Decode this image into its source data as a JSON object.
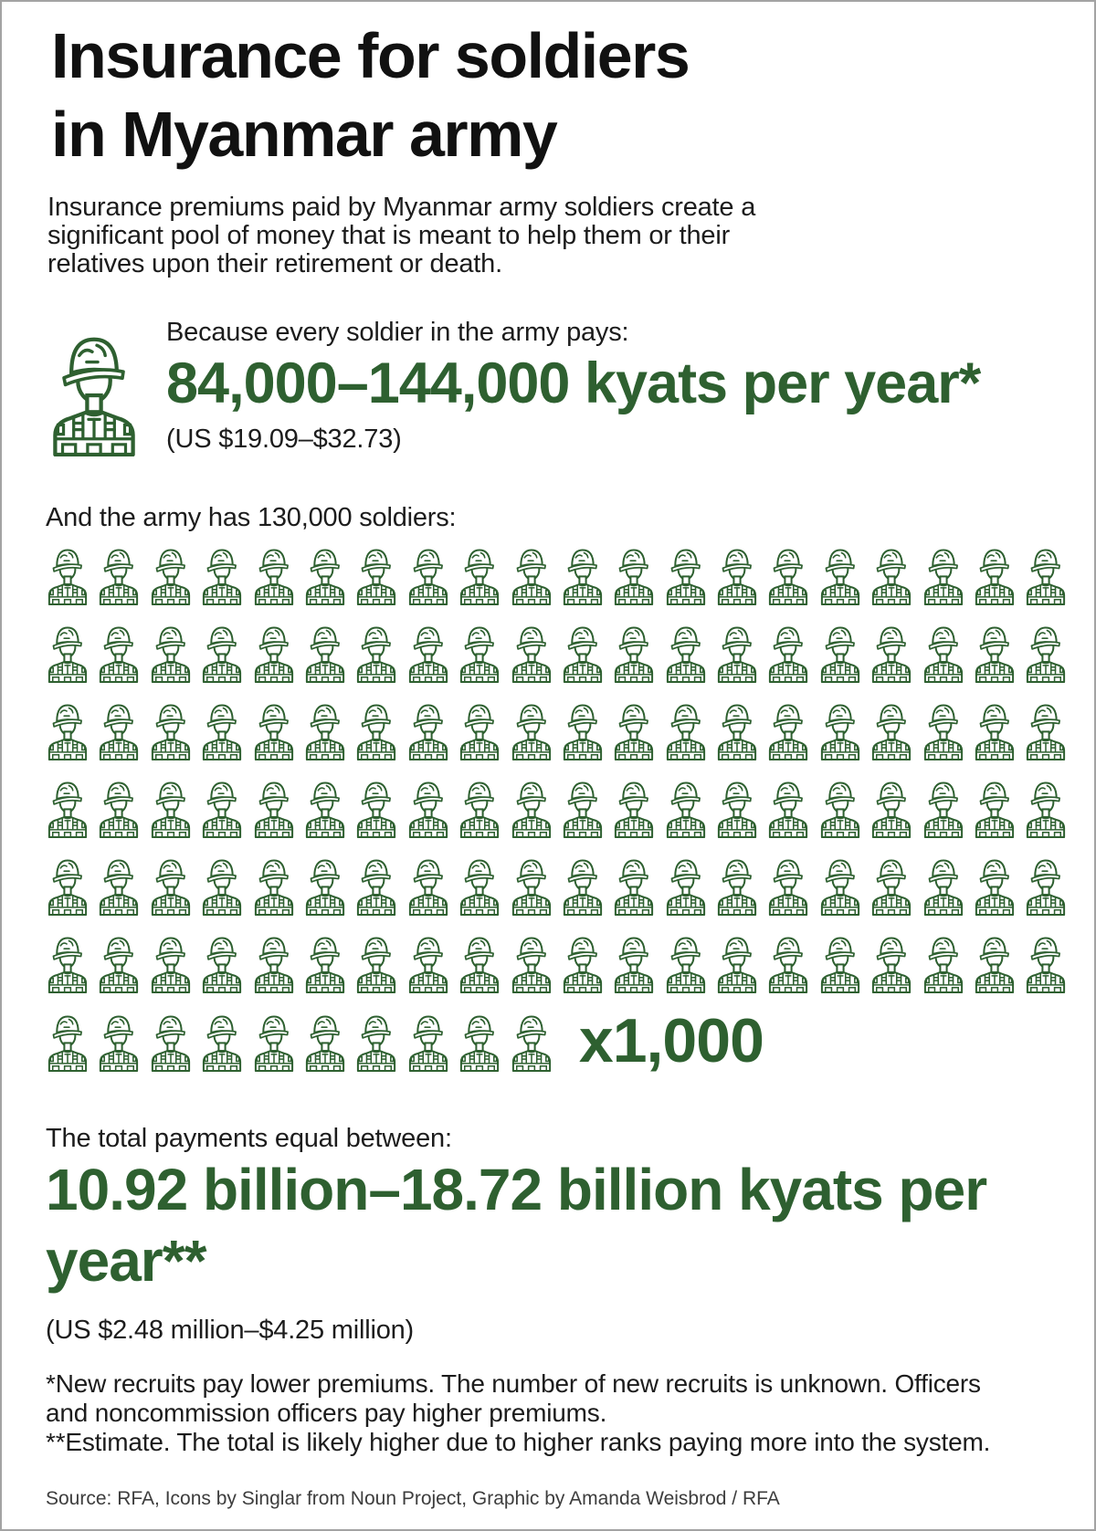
{
  "title": {
    "line1": "Insurance for soldiers",
    "line2": "in Myanmar army"
  },
  "intro": {
    "lines": [
      "Insurance premiums paid by Myanmar army soldiers create a",
      "significant pool of money that is meant to help them or their",
      "relatives upon their retirement or death."
    ]
  },
  "premium_fact": {
    "lead_in": "Because every soldier in the army pays:",
    "amount": "84,000–144,000 kyats per year*",
    "usd": "(US $19.09–$32.73)",
    "icon": "soldier-icon"
  },
  "army_size": {
    "label": "And the army has 130,000 soldiers:",
    "icon": "soldier-icon",
    "icons_per_row": [
      20,
      20,
      20,
      20,
      20,
      20,
      10
    ],
    "icons_total": 130,
    "multiplier_label": "x1,000"
  },
  "total": {
    "label": "The total payments equal between:",
    "amount_line1": "10.92 billion–18.72 billion kyats per",
    "amount_line2": "year**",
    "usd": "(US $2.48 million–$4.25 million)"
  },
  "footnotes": {
    "lines": [
      "*New recruits pay lower premiums. The number of new recruits is unknown. Officers",
      "and noncommission officers pay higher premiums.",
      "**Estimate. The total is likely higher due to higher ranks paying more into the system."
    ]
  },
  "source": "Source: RFA, Icons by Singlar from Noun Project, Graphic by Amanda Weisbrod / RFA",
  "colors": {
    "accent_green": "#2e6030",
    "text": "#1c1c1c",
    "source_text": "#3d3d3d",
    "border": "#a3a3a3",
    "background": "#ffffff"
  },
  "chart_data": {
    "type": "pictogram",
    "title": "Insurance for soldiers in Myanmar army",
    "icon": "soldier",
    "icon_unit_value": 1000,
    "icons_shown": 130,
    "rows_layout": [
      20,
      20,
      20,
      20,
      20,
      20,
      10
    ],
    "soldiers_total": 130000,
    "premium_per_soldier_kyats_range": [
      84000,
      144000
    ],
    "premium_per_soldier_usd_range": [
      19.09,
      32.73
    ],
    "total_payments_kyats_billions_range": [
      10.92,
      18.72
    ],
    "total_payments_usd_millions_range": [
      2.48,
      4.25
    ]
  }
}
